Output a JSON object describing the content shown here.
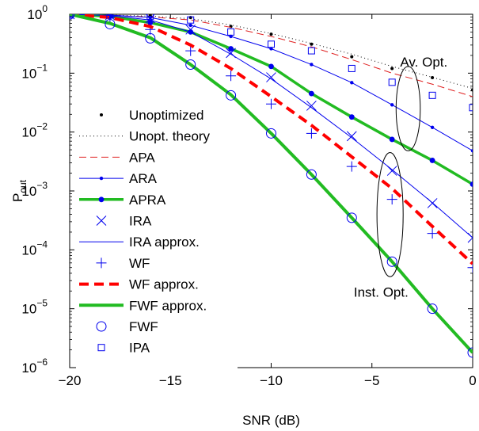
{
  "chart_data": {
    "type": "line",
    "xlabel": "SNR (dB)",
    "ylabel": "P",
    "ylabel_sub": "out",
    "xlim": [
      -20,
      0
    ],
    "ylim": [
      1e-06,
      1
    ],
    "yscale": "log",
    "grid": false,
    "legend_position": "left",
    "x_ticks": [
      {
        "value": -20,
        "label": "−20"
      },
      {
        "value": -15,
        "label": "−15"
      },
      {
        "value": -10,
        "label": "−10"
      },
      {
        "value": -5,
        "label": "−5"
      },
      {
        "value": 0,
        "label": "0"
      }
    ],
    "y_ticks": [
      {
        "value": 1,
        "base": "10",
        "exp": "0"
      },
      {
        "value": 0.1,
        "base": "10",
        "exp": "−1"
      },
      {
        "value": 0.01,
        "base": "10",
        "exp": "−2"
      },
      {
        "value": 0.001,
        "base": "10",
        "exp": "−3"
      },
      {
        "value": 0.0001,
        "base": "10",
        "exp": "−4"
      },
      {
        "value": 1e-05,
        "base": "10",
        "exp": "−5"
      },
      {
        "value": 1e-06,
        "base": "10",
        "exp": "−6"
      }
    ],
    "series": [
      {
        "name": "Unoptimized",
        "style": "points",
        "marker": "dot",
        "color": "#000000",
        "x": [
          -20,
          -18,
          -16,
          -14,
          -12,
          -10,
          -8,
          -6,
          -4,
          -2,
          0
        ],
        "y": [
          1.0,
          0.98,
          0.95,
          0.88,
          0.62,
          0.46,
          0.31,
          0.19,
          0.12,
          0.084,
          0.052
        ]
      },
      {
        "name": "Unopt. theory",
        "style": "dotted",
        "color": "#000000",
        "width": 1,
        "x": [
          -20,
          -18,
          -16,
          -14,
          -12,
          -10,
          -8,
          -6,
          -4,
          -2,
          0
        ],
        "y": [
          1.0,
          0.97,
          0.93,
          0.84,
          0.66,
          0.47,
          0.32,
          0.21,
          0.13,
          0.085,
          0.055
        ]
      },
      {
        "name": "APA",
        "style": "dashed",
        "color": "#e02020",
        "width": 1,
        "x": [
          -20,
          -18,
          -16,
          -14,
          -12,
          -10,
          -8,
          -6,
          -4,
          -2,
          0
        ],
        "y": [
          1.0,
          0.96,
          0.9,
          0.8,
          0.6,
          0.42,
          0.28,
          0.17,
          0.1,
          0.065,
          0.04
        ]
      },
      {
        "name": "ARA",
        "style": "solid",
        "marker": "smalldot",
        "color": "#0000ee",
        "width": 1,
        "x": [
          -20,
          -18,
          -16,
          -14,
          -12,
          -10,
          -8,
          -6,
          -4,
          -2,
          0
        ],
        "y": [
          1.0,
          0.97,
          0.88,
          0.65,
          0.42,
          0.26,
          0.14,
          0.069,
          0.029,
          0.012,
          0.0048
        ]
      },
      {
        "name": "APRA",
        "style": "solid",
        "marker": "bigdot",
        "color": "#22bb22",
        "markerColor": "#0000ee",
        "width": 3.5,
        "x": [
          -20,
          -18,
          -16,
          -14,
          -12,
          -10,
          -8,
          -6,
          -4,
          -2,
          0
        ],
        "y": [
          1.0,
          0.92,
          0.72,
          0.5,
          0.26,
          0.13,
          0.045,
          0.018,
          0.0075,
          0.0033,
          0.0013
        ]
      },
      {
        "name": "IRA",
        "style": "points",
        "marker": "x",
        "color": "#0000ee",
        "x": [
          -20,
          -18,
          -16,
          -14,
          -12,
          -10,
          -8,
          -6,
          -4,
          -2,
          0
        ],
        "y": [
          1.0,
          0.96,
          0.85,
          0.55,
          0.22,
          0.085,
          0.028,
          0.0085,
          0.0022,
          0.00062,
          0.00016
        ]
      },
      {
        "name": "IRA approx.",
        "style": "solid",
        "color": "#0000ee",
        "width": 1,
        "x": [
          -20,
          -18,
          -16,
          -14,
          -12,
          -10,
          -8,
          -6,
          -4,
          -2,
          0
        ],
        "y": [
          1.0,
          0.95,
          0.8,
          0.5,
          0.21,
          0.08,
          0.026,
          0.008,
          0.0023,
          0.00063,
          0.00016
        ]
      },
      {
        "name": "WF",
        "style": "points",
        "marker": "plus",
        "color": "#0000ee",
        "x": [
          -20,
          -18,
          -16,
          -14,
          -12,
          -10,
          -8,
          -6,
          -4,
          -2,
          0
        ],
        "y": [
          1.0,
          0.9,
          0.55,
          0.24,
          0.09,
          0.03,
          0.0095,
          0.0026,
          0.00072,
          0.00019,
          5e-05
        ]
      },
      {
        "name": "WF approx.",
        "style": "dashed",
        "color": "#ff0000",
        "width": 4,
        "x": [
          -20,
          -18,
          -16,
          -14,
          -12,
          -10,
          -8,
          -6,
          -4,
          -2,
          0
        ],
        "y": [
          1.0,
          0.88,
          0.62,
          0.3,
          0.12,
          0.04,
          0.013,
          0.0038,
          0.0011,
          0.00025,
          5.8e-05
        ]
      },
      {
        "name": "FWF approx.",
        "style": "solid",
        "color": "#22bb22",
        "width": 4,
        "x": [
          -20,
          -18,
          -16,
          -14,
          -12,
          -10,
          -8,
          -6,
          -4,
          -2,
          0
        ],
        "y": [
          1.0,
          0.7,
          0.4,
          0.14,
          0.043,
          0.0095,
          0.0019,
          0.00035,
          6.3e-05,
          1e-05,
          1.8e-06
        ]
      },
      {
        "name": "FWF",
        "style": "points",
        "marker": "circle",
        "color": "#0000ee",
        "x": [
          -20,
          -18,
          -16,
          -14,
          -12,
          -10,
          -8,
          -6,
          -4,
          -2,
          0
        ],
        "y": [
          1.0,
          0.68,
          0.39,
          0.14,
          0.042,
          0.0095,
          0.0019,
          0.00035,
          6.3e-05,
          1e-05,
          1.8e-06
        ]
      },
      {
        "name": "IPA",
        "style": "points",
        "marker": "square",
        "color": "#0000ee",
        "x": [
          -20,
          -18,
          -16,
          -14,
          -12,
          -10,
          -8,
          -6,
          -4,
          -2,
          0
        ],
        "y": [
          1.0,
          0.97,
          0.93,
          0.8,
          0.5,
          0.31,
          0.24,
          0.12,
          0.07,
          0.042,
          0.026
        ]
      }
    ],
    "annotations": [
      {
        "text": "Av. Opt.",
        "x": -3.6,
        "y": 0.13
      },
      {
        "text": "Inst. Opt.",
        "x": -5.9,
        "y": 1.6e-05
      }
    ],
    "ellipses": [
      {
        "name": "av-opt-ellipse",
        "cx": -3.2,
        "cy": 0.025,
        "rx": 0.6,
        "ylow": 0.0048,
        "yhigh": 0.13
      },
      {
        "name": "inst-opt-ellipse",
        "cx": -4.1,
        "cy": 0.0007,
        "rx": 0.65,
        "ylow": 3.5e-05,
        "yhigh": 0.0045
      }
    ]
  }
}
